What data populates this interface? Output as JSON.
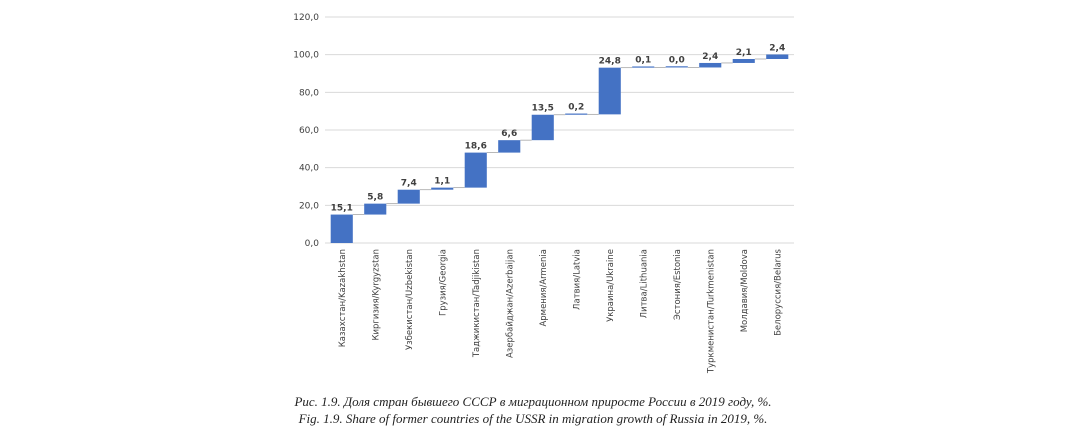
{
  "chart_data": {
    "type": "waterfall",
    "categories": [
      "Казахстан/Kazakhstan",
      "Киргизия/Kyrgyzstan",
      "Узбекистан/Uzbekistan",
      "Грузия/Georgia",
      "Таджикистан/Tadjikistan",
      "Азербайджан/Azerbaijan",
      "Армения/Armenia",
      "Латвия/Latvia",
      "Украина/Ukraine",
      "Литва/Lithuania",
      "Эстония/Estonia",
      "Туркменистан/Turkmenistan",
      "Молдавия/Moldova",
      "Белоруссия/Belarus"
    ],
    "values": [
      15.1,
      5.8,
      7.4,
      1.1,
      18.6,
      6.6,
      13.5,
      0.2,
      24.8,
      0.1,
      0.0,
      2.4,
      2.1,
      2.4
    ],
    "value_labels": [
      "15,1",
      "5,8",
      "7,4",
      "1,1",
      "18,6",
      "6,6",
      "13,5",
      "0,2",
      "24,8",
      "0,1",
      "0,0",
      "2,4",
      "2,1",
      "2,4"
    ],
    "ylim": [
      0,
      120
    ],
    "yticks": [
      0,
      20,
      40,
      60,
      80,
      100,
      120
    ],
    "ytick_labels": [
      "0,0",
      "20,0",
      "40,0",
      "60,0",
      "80,0",
      "100,0",
      "120,0"
    ],
    "grid": true,
    "legend": "none",
    "colors": {
      "bar": "#4472C4",
      "grid": "#d9d9d9",
      "connector": "#a6a6a6"
    }
  },
  "caption": {
    "ru": "Рис. 1.9. Доля стран бывшего СССР в миграционном приросте России в 2019 году, %.",
    "en": "Fig. 1.9. Share of former countries of the USSR in migration growth of Russia in 2019, %."
  }
}
